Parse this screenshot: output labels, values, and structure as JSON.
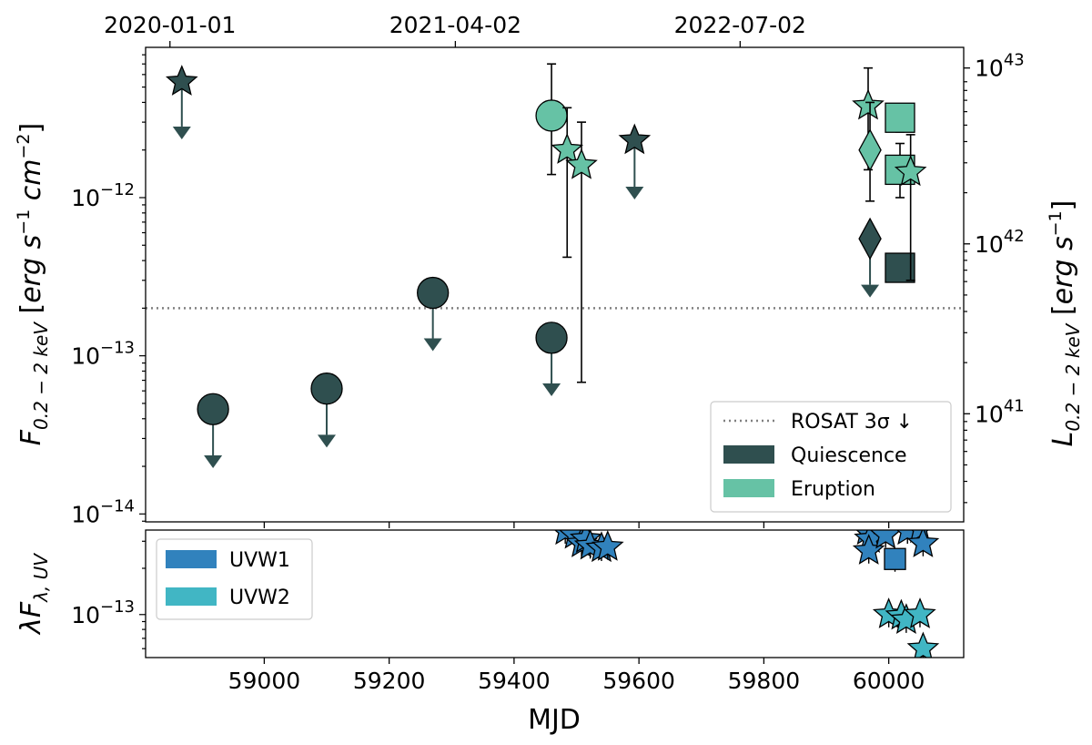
{
  "chart_data": [
    {
      "type": "scatter",
      "panel": "x-ray flux",
      "xlim": [
        58810,
        60120
      ],
      "ylim_log10": [
        -14.05,
        -11.05
      ],
      "yscale": "log",
      "xlabel": "MJD",
      "ylabel": "F_{0.2-2 keV} [erg s^-1 cm^-2]",
      "ylabel_right": "L_{0.2-2 keV} [erg s^-1]",
      "y_ticks": [
        {
          "value": 1e-12,
          "base": "10",
          "exp": "−12"
        },
        {
          "value": 1e-13,
          "base": "10",
          "exp": "−13"
        },
        {
          "value": 1e-14,
          "base": "10",
          "exp": "−14"
        }
      ],
      "right_ticks": [
        {
          "value": 6.6e-12,
          "base": "10",
          "exp": "43"
        },
        {
          "value": 5.1e-13,
          "base": "10",
          "exp": "42"
        },
        {
          "value": 4.3e-14,
          "base": "10",
          "exp": "41"
        }
      ],
      "top_ticks": [
        {
          "mjd": 58849,
          "label": "2020-01-01"
        },
        {
          "mjd": 59306,
          "label": "2021-04-02"
        },
        {
          "mjd": 59762,
          "label": "2022-07-02"
        }
      ],
      "reference_line": {
        "label": "ROSAT 3σ ↓",
        "value": 2e-13
      },
      "series": [
        {
          "name": "Quiescence",
          "color": "#2f4f4f",
          "points": [
            {
              "x": 58868,
              "y": 5.4e-12,
              "marker": "star",
              "upper_limit": true,
              "arrow_to": 2.4e-12
            },
            {
              "x": 58918,
              "y": 4.6e-14,
              "marker": "circle",
              "upper_limit": true,
              "arrow_to": 2e-14
            },
            {
              "x": 59100,
              "y": 6.2e-14,
              "marker": "circle",
              "upper_limit": true,
              "arrow_to": 2.7e-14
            },
            {
              "x": 59270,
              "y": 2.5e-13,
              "marker": "circle",
              "upper_limit": true,
              "arrow_to": 1.1e-13
            },
            {
              "x": 59460,
              "y": 1.3e-13,
              "marker": "circle",
              "upper_limit": true,
              "arrow_to": 5.7e-14
            },
            {
              "x": 59593,
              "y": 2.3e-12,
              "marker": "star",
              "upper_limit": true,
              "arrow_to": 1e-12
            },
            {
              "x": 59970,
              "y": 5.5e-13,
              "marker": "diamond",
              "upper_limit": true,
              "arrow_to": 2.4e-13
            },
            {
              "x": 60018,
              "y": 3.6e-13,
              "marker": "square",
              "err_lo": 3e-13,
              "err_hi": 4.4e-13
            }
          ]
        },
        {
          "name": "Eruption",
          "color": "#66c2a5",
          "points": [
            {
              "x": 59460,
              "y": 3.3e-12,
              "marker": "circle",
              "err_lo": 1.4e-12,
              "err_hi": 7e-12
            },
            {
              "x": 59485,
              "y": 2e-12,
              "marker": "star",
              "err_lo": 4.2e-13,
              "err_hi": 3.7e-12
            },
            {
              "x": 59508,
              "y": 1.6e-12,
              "marker": "star",
              "err_lo": 6.8e-14,
              "err_hi": 3e-12
            },
            {
              "x": 59967,
              "y": 3.8e-12,
              "marker": "star",
              "err_lo": 1.5e-12,
              "err_hi": 6.6e-12
            },
            {
              "x": 59970,
              "y": 2e-12,
              "marker": "diamond",
              "err_lo": 9.5e-13,
              "err_hi": 4e-12
            },
            {
              "x": 60018,
              "y": 3.2e-12,
              "marker": "square",
              "err_lo": 2.6e-12,
              "err_hi": 3.9e-12
            },
            {
              "x": 60018,
              "y": 1.5e-12,
              "marker": "square",
              "err_lo": 1e-12,
              "err_hi": 2.2e-12
            },
            {
              "x": 60035,
              "y": 1.45e-12,
              "marker": "star",
              "err_lo": 3e-13,
              "err_hi": 2.5e-12
            }
          ]
        }
      ],
      "legend": {
        "placement": "lower-right",
        "entries": [
          {
            "label": "ROSAT 3σ ↓",
            "style": "dotted",
            "color": "#808080"
          },
          {
            "label": "Quiescence",
            "style": "patch",
            "color": "#2f4f4f"
          },
          {
            "label": "Eruption",
            "style": "patch",
            "color": "#66c2a5"
          }
        ]
      }
    },
    {
      "type": "scatter",
      "panel": "uv flux",
      "xlim": [
        58810,
        60120
      ],
      "ylim_log10": [
        -13.28,
        -12.45
      ],
      "yscale": "log",
      "xlabel": "MJD",
      "ylabel": "λF_{λ,UV}",
      "x_ticks": [
        59000,
        59200,
        59400,
        59600,
        59800,
        60000
      ],
      "y_ticks": [
        {
          "value": 1e-13,
          "base": "10",
          "exp": "−13"
        }
      ],
      "series": [
        {
          "name": "UVW1",
          "color": "#3182bd",
          "points": [
            {
              "x": 59482,
              "y": 3.5e-13,
              "marker": "star"
            },
            {
              "x": 59497,
              "y": 3.3e-13,
              "marker": "star"
            },
            {
              "x": 59508,
              "y": 2.9e-13,
              "marker": "star"
            },
            {
              "x": 59515,
              "y": 3.1e-13,
              "marker": "star"
            },
            {
              "x": 59522,
              "y": 2.8e-13,
              "marker": "star"
            },
            {
              "x": 59540,
              "y": 2.7e-13,
              "marker": "star"
            },
            {
              "x": 59550,
              "y": 2.75e-13,
              "marker": "star"
            },
            {
              "x": 59965,
              "y": 3.5e-13,
              "marker": "star"
            },
            {
              "x": 59970,
              "y": 3.1e-13,
              "marker": "star"
            },
            {
              "x": 59968,
              "y": 2.6e-13,
              "marker": "star"
            },
            {
              "x": 59995,
              "y": 3.3e-13,
              "marker": "star"
            },
            {
              "x": 60010,
              "y": 2.3e-13,
              "marker": "square"
            },
            {
              "x": 60030,
              "y": 3.5e-13,
              "marker": "star"
            },
            {
              "x": 60050,
              "y": 3.6e-13,
              "marker": "star"
            },
            {
              "x": 60055,
              "y": 2.9e-13,
              "marker": "star"
            }
          ]
        },
        {
          "name": "UVW2",
          "color": "#41b6c4",
          "points": [
            {
              "x": 60000,
              "y": 1e-13,
              "marker": "star"
            },
            {
              "x": 60020,
              "y": 9.8e-14,
              "marker": "star"
            },
            {
              "x": 60028,
              "y": 9.2e-14,
              "marker": "star"
            },
            {
              "x": 60050,
              "y": 1e-13,
              "marker": "star"
            },
            {
              "x": 60055,
              "y": 6e-14,
              "marker": "star"
            }
          ]
        }
      ],
      "legend": {
        "placement": "upper-left",
        "entries": [
          {
            "label": "UVW1",
            "style": "patch",
            "color": "#3182bd"
          },
          {
            "label": "UVW2",
            "style": "patch",
            "color": "#41b6c4"
          }
        ]
      }
    }
  ]
}
